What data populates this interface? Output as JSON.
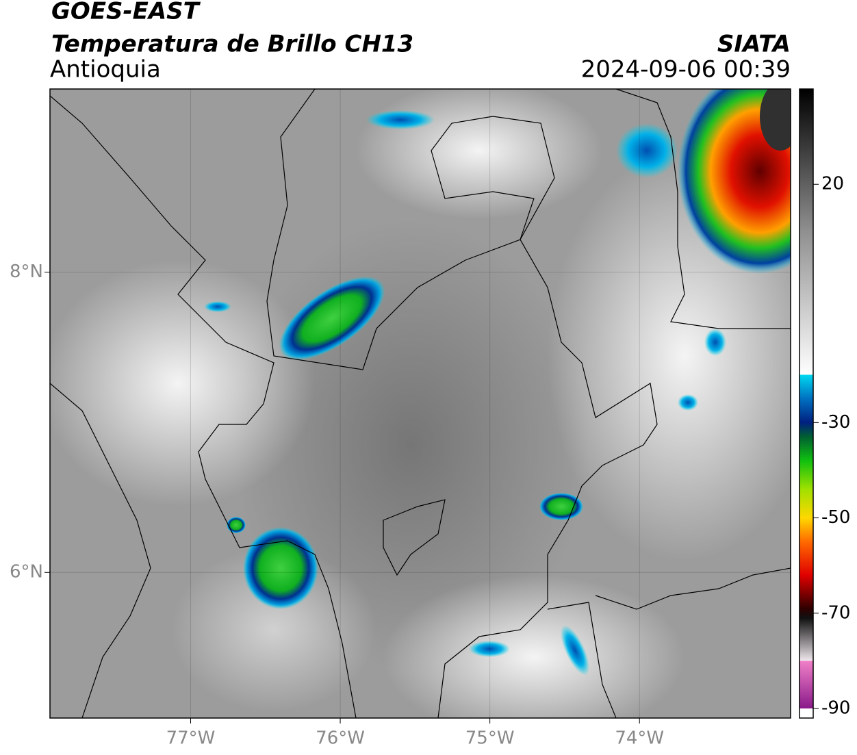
{
  "header": {
    "satellite": "GOES-EAST",
    "product": "Temperatura de Brillo CH13",
    "region": "Antioquia",
    "source": "SIATA",
    "datetime": "2024-09-06 00:39"
  },
  "map": {
    "xlim": [
      -77.94,
      -72.99
    ],
    "ylim": [
      5.03,
      9.22
    ],
    "xticks": [
      {
        "value": -77,
        "label": "77°W"
      },
      {
        "value": -76,
        "label": "76°W"
      },
      {
        "value": -75,
        "label": "75°W"
      },
      {
        "value": -74,
        "label": "74°W"
      }
    ],
    "yticks": [
      {
        "value": 6,
        "label": "6°N"
      },
      {
        "value": 8,
        "label": "8°N"
      }
    ],
    "grid": true
  },
  "colorbar": {
    "lim": [
      -92,
      40
    ],
    "ticks": [
      20,
      -30,
      -50,
      -70,
      -90
    ],
    "stops": [
      {
        "value": -92,
        "color": "#ffffff"
      },
      {
        "value": -90,
        "color": "#ffffff"
      },
      {
        "value": -90,
        "color": "#8a1a8a"
      },
      {
        "value": -80,
        "color": "#f080c8"
      },
      {
        "value": -80,
        "color": "#f0e8ee"
      },
      {
        "value": -71,
        "color": "#101010"
      },
      {
        "value": -69,
        "color": "#300000"
      },
      {
        "value": -62,
        "color": "#e00000"
      },
      {
        "value": -55,
        "color": "#ff6a00"
      },
      {
        "value": -50,
        "color": "#ffd800"
      },
      {
        "value": -44,
        "color": "#a0e000"
      },
      {
        "value": -38,
        "color": "#10c010"
      },
      {
        "value": -33,
        "color": "#006030"
      },
      {
        "value": -30,
        "color": "#002080"
      },
      {
        "value": -25,
        "color": "#0070c0"
      },
      {
        "value": -20,
        "color": "#00d8f0"
      },
      {
        "value": -20,
        "color": "#ffffff"
      },
      {
        "value": 10,
        "color": "#909090"
      },
      {
        "value": 40,
        "color": "#000000"
      }
    ]
  }
}
